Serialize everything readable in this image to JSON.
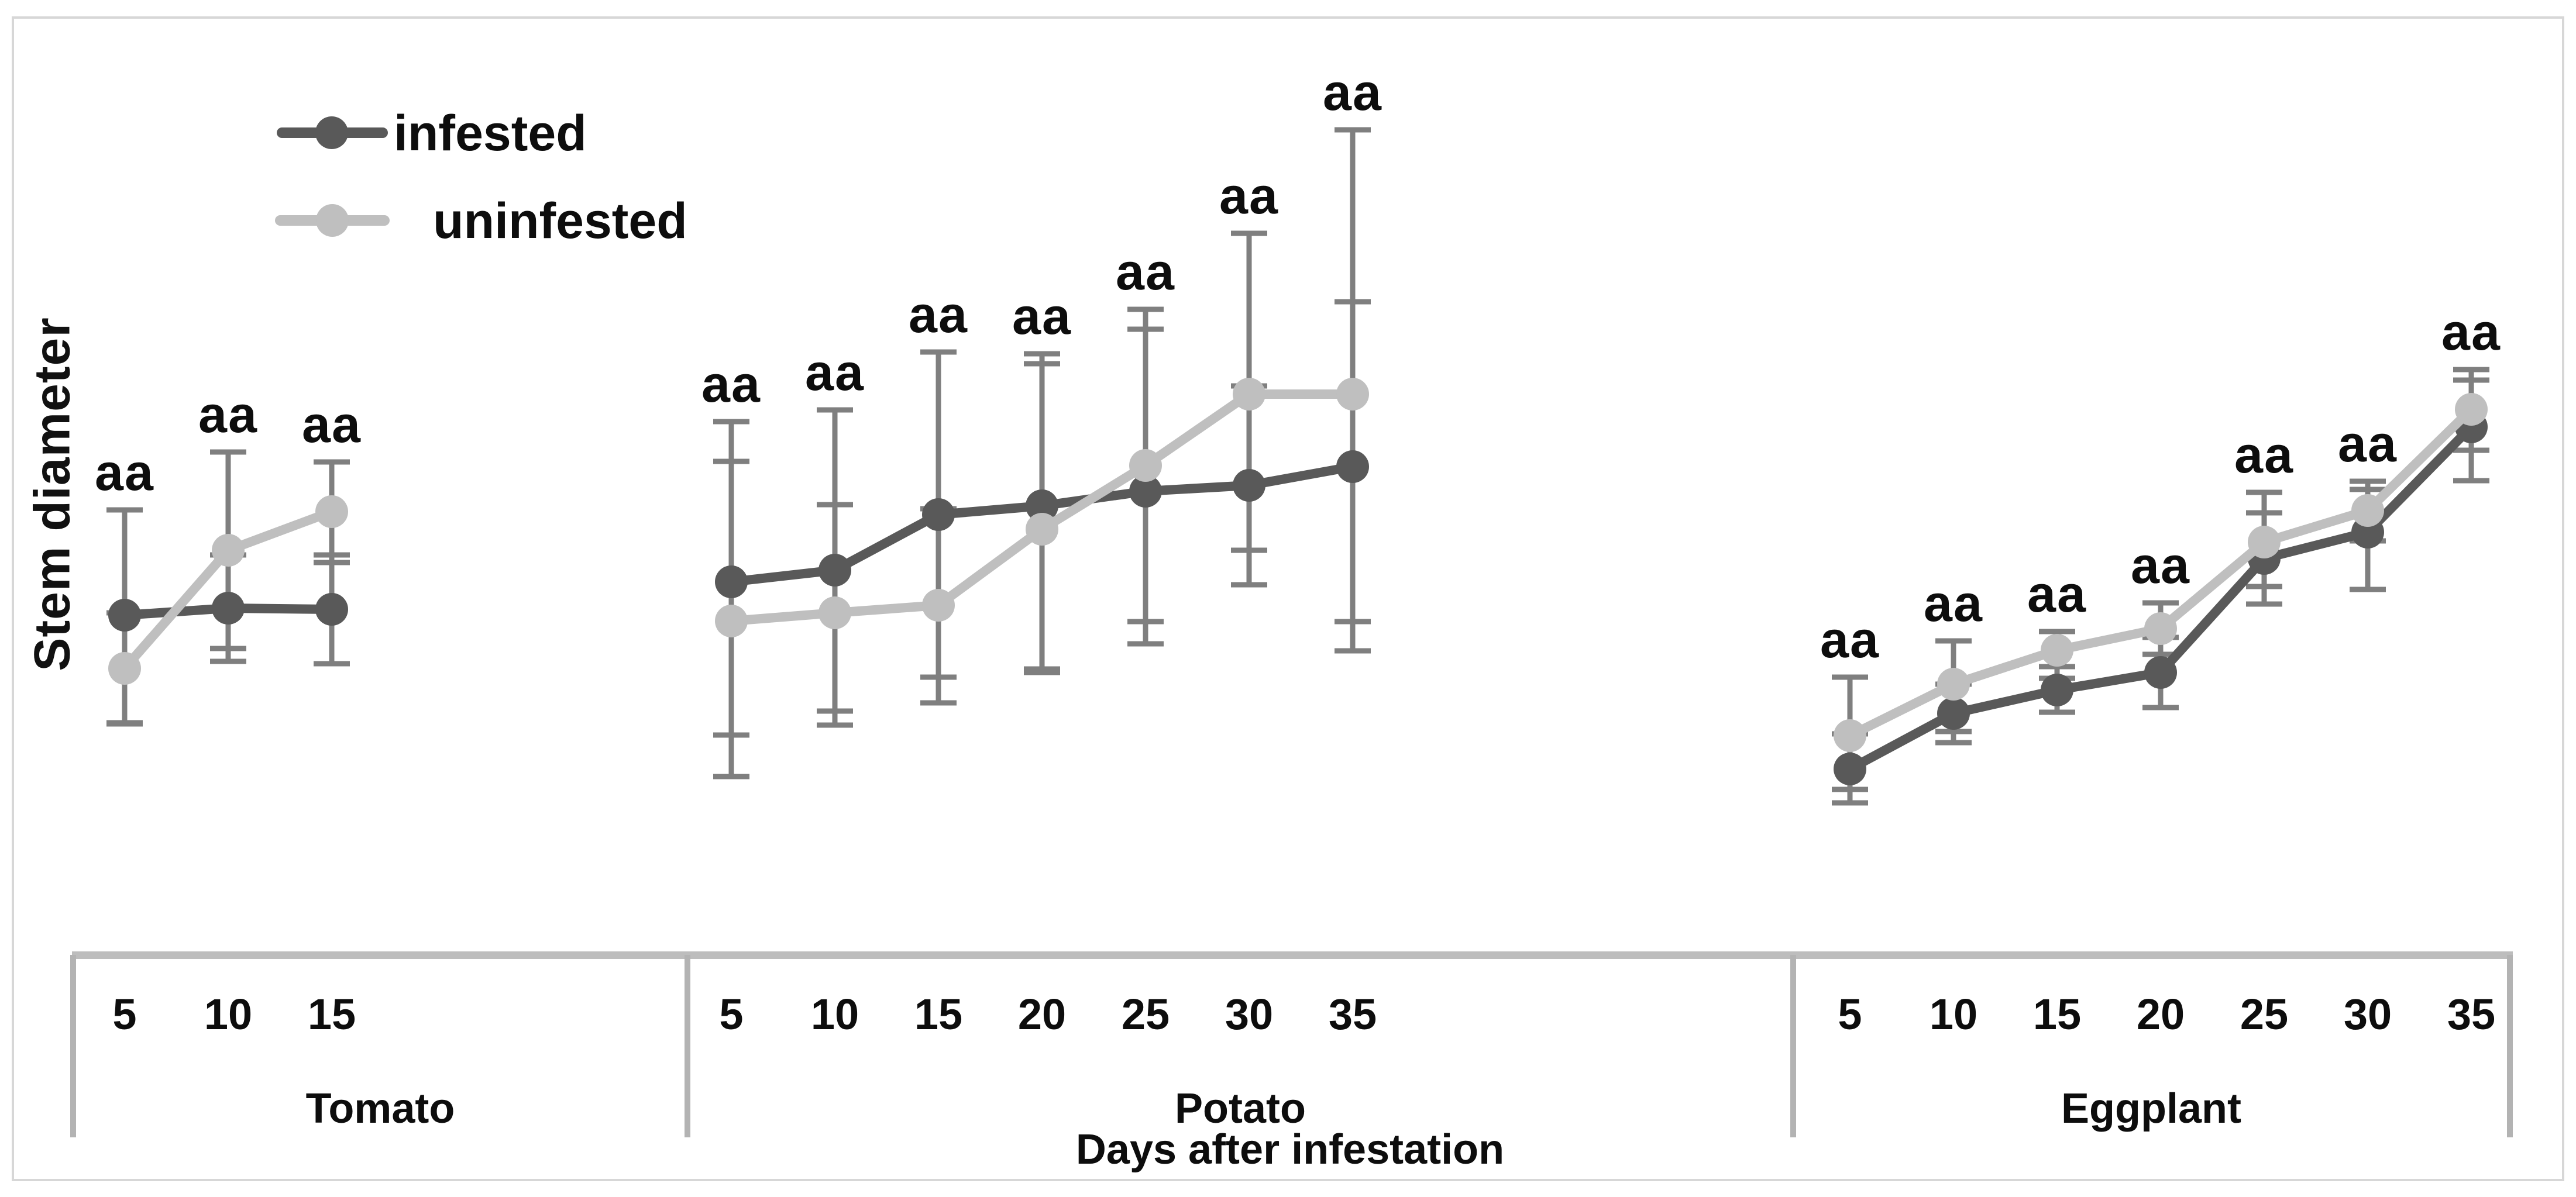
{
  "colors": {
    "infested": "#595959",
    "uninfested": "#bfbfbf",
    "error_bar": "#7f7f7f",
    "axis_line": "#bdbdbd",
    "frame": "#d7d7d7",
    "text": "#0d0d0d"
  },
  "legend": {
    "items": [
      {
        "label": "infested",
        "color": "#595959"
      },
      {
        "label": "uninfested",
        "color": "#bfbfbf"
      }
    ]
  },
  "chart_data": {
    "type": "line",
    "title": "",
    "ylabel": "Stem diameter",
    "xlabel": "Days after infestation",
    "y_axis": {
      "numeric_ticks_shown": false,
      "units": "relative (no scale shown)"
    },
    "grid": false,
    "legend_position": "top-left",
    "significance_label_per_point": "aa",
    "groups": [
      {
        "name": "Tomato",
        "days": [
          5,
          10,
          15
        ],
        "series": [
          {
            "name": "infested",
            "values": [
              5.76,
              5.88,
              5.86
            ],
            "err_up": [
              1.8,
              0.91,
              0.93
            ],
            "err_dn": [
              1.84,
              0.91,
              0.93
            ]
          },
          {
            "name": "uninfested",
            "values": [
              4.85,
              6.87,
              7.53
            ],
            "err_up": [
              0.95,
              1.68,
              0.85
            ],
            "err_dn": [
              0.95,
              1.68,
              0.87
            ]
          }
        ]
      },
      {
        "name": "Potato",
        "days": [
          5,
          10,
          15,
          20,
          25,
          30,
          35
        ],
        "series": [
          {
            "name": "infested",
            "values": [
              6.33,
              6.53,
              7.48,
              7.63,
              7.88,
              7.98,
              8.3
            ],
            "err_up": [
              2.74,
              2.74,
              2.78,
              2.43,
              2.77,
              1.7,
              2.82
            ],
            "err_dn": [
              2.62,
              2.65,
              2.78,
              2.85,
              2.61,
              1.7,
              2.65
            ]
          },
          {
            "name": "uninfested",
            "values": [
              5.66,
              5.8,
              5.93,
              7.23,
              8.32,
              9.54,
              9.54
            ],
            "err_up": [
              2.73,
              1.85,
              1.65,
              3.0,
              2.67,
              2.75,
              4.52
            ],
            "err_dn": [
              2.66,
              1.68,
              1.67,
              2.39,
              2.67,
              2.67,
              4.39
            ]
          }
        ]
      },
      {
        "name": "Eggplant",
        "days": [
          5,
          10,
          15,
          20,
          25,
          30,
          35
        ],
        "series": [
          {
            "name": "infested",
            "values": [
              3.13,
              4.08,
              4.48,
              4.78,
              6.73,
              7.18,
              8.98
            ],
            "err_up": [
              0.6,
              0.5,
              0.4,
              0.6,
              0.78,
              0.73,
              0.8
            ],
            "err_dn": [
              0.58,
              0.5,
              0.38,
              0.6,
              0.78,
              0.98,
              0.92
            ]
          },
          {
            "name": "uninfested",
            "values": [
              3.7,
              4.58,
              5.16,
              5.53,
              7.01,
              7.55,
              9.28
            ],
            "err_up": [
              1.0,
              0.74,
              0.32,
              0.44,
              0.85,
              0.5,
              0.68
            ],
            "err_dn": [
              0.92,
              0.81,
              0.48,
              0.44,
              0.76,
              0.52,
              0.7
            ]
          }
        ]
      }
    ]
  }
}
